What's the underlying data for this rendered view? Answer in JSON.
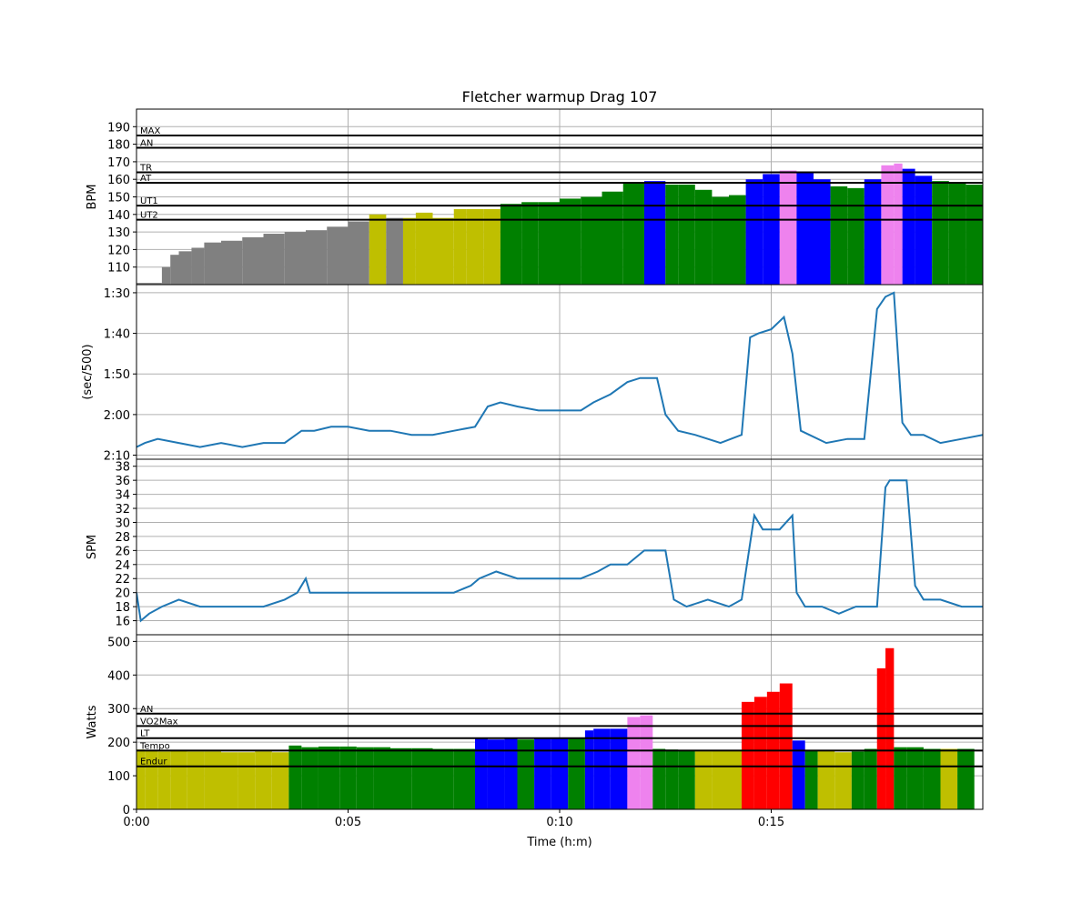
{
  "chart_data": {
    "type": "multi-panel",
    "title": "Fletcher warmup Drag 107",
    "xlabel": "Time (h:m)",
    "x_ticks": [
      "0:00",
      "0:05",
      "0:10",
      "0:15"
    ],
    "x_tick_values": [
      0,
      5,
      10,
      15
    ],
    "xlim": [
      0,
      20
    ],
    "zone_colors": {
      "rest": "#808080",
      "ut2": "#bfbf00",
      "ut1": "#008000",
      "at": "#0000ff",
      "tr": "#ee82ee",
      "an": "#ff0000"
    },
    "line_color": "#1f77b4",
    "panels": [
      {
        "type": "bar",
        "ylabel": "BPM",
        "ylim": [
          100,
          200
        ],
        "y_ticks": [
          "110",
          "120",
          "130",
          "140",
          "150",
          "160",
          "170",
          "180",
          "190"
        ],
        "y_tick_values": [
          110,
          120,
          130,
          140,
          150,
          160,
          170,
          180,
          190
        ],
        "thresholds": [
          {
            "label": "MAX",
            "value": 185
          },
          {
            "label": "AN",
            "value": 178
          },
          {
            "label": "TR",
            "value": 164
          },
          {
            "label": "AT",
            "value": 158
          },
          {
            "label": "UT1",
            "value": 145
          },
          {
            "label": "UT2",
            "value": 137
          }
        ],
        "series": {
          "x": [
            0.6,
            0.8,
            1.0,
            1.3,
            1.6,
            2.0,
            2.5,
            3.0,
            3.5,
            4.0,
            4.5,
            5.0,
            5.5,
            5.9,
            6.3,
            6.6,
            7.0,
            7.5,
            7.8,
            8.2,
            8.6,
            9.1,
            9.5,
            10.0,
            10.5,
            11.0,
            11.5,
            12.0,
            12.5,
            12.8,
            13.2,
            13.6,
            14.0,
            14.4,
            14.8,
            15.2,
            15.6,
            16.0,
            16.4,
            16.8,
            17.2,
            17.6,
            17.9,
            18.1,
            18.4,
            18.8,
            19.2,
            19.6,
            20.0
          ],
          "values": [
            101,
            110,
            117,
            119,
            121,
            124,
            125,
            127,
            129,
            130,
            131,
            133,
            136,
            140,
            138,
            138,
            141,
            138,
            143,
            143,
            143,
            146,
            147,
            147,
            149,
            150,
            153,
            158,
            159,
            157,
            157,
            154,
            150,
            151,
            160,
            163,
            165,
            164,
            160,
            156,
            155,
            160,
            168,
            169,
            166,
            162,
            159,
            158,
            157
          ],
          "zones": [
            "rest",
            "rest",
            "rest",
            "rest",
            "rest",
            "rest",
            "rest",
            "rest",
            "rest",
            "rest",
            "rest",
            "rest",
            "rest",
            "ut2",
            "rest",
            "ut2",
            "ut2",
            "ut2",
            "ut2",
            "ut2",
            "ut2",
            "ut1",
            "ut1",
            "ut1",
            "ut1",
            "ut1",
            "ut1",
            "ut1",
            "at",
            "ut1",
            "ut1",
            "ut1",
            "ut1",
            "ut1",
            "at",
            "at",
            "tr",
            "at",
            "at",
            "ut1",
            "ut1",
            "at",
            "tr",
            "tr",
            "at",
            "at",
            "ut1",
            "ut1",
            "ut1"
          ]
        }
      },
      {
        "type": "line",
        "ylabel": "(sec/500)",
        "ylim": [
          131,
          88
        ],
        "y_ticks": [
          "1:30",
          "1:40",
          "1:50",
          "2:00",
          "2:10"
        ],
        "y_tick_values": [
          90,
          100,
          110,
          120,
          130
        ],
        "series": {
          "x": [
            0.0,
            0.2,
            0.5,
            1.0,
            1.5,
            2.0,
            2.5,
            3.0,
            3.5,
            3.9,
            4.2,
            4.6,
            5.0,
            5.5,
            6.0,
            6.5,
            7.0,
            7.5,
            8.0,
            8.3,
            8.6,
            9.0,
            9.5,
            10.0,
            10.5,
            10.8,
            11.2,
            11.6,
            11.9,
            12.3,
            12.5,
            12.8,
            13.2,
            13.8,
            14.3,
            14.5,
            14.7,
            15.0,
            15.3,
            15.5,
            15.7,
            15.9,
            16.3,
            16.8,
            17.2,
            17.5,
            17.7,
            17.9,
            18.1,
            18.3,
            18.6,
            19.0,
            19.5,
            20.0
          ],
          "values": [
            128,
            127,
            126,
            127,
            128,
            127,
            128,
            127,
            127,
            124,
            124,
            123,
            123,
            124,
            124,
            125,
            125,
            124,
            123,
            118,
            117,
            118,
            119,
            119,
            119,
            117,
            115,
            112,
            111,
            111,
            120,
            124,
            125,
            127,
            125,
            101,
            100,
            99,
            96,
            105,
            124,
            125,
            127,
            126,
            126,
            94,
            91,
            90,
            122,
            125,
            125,
            127,
            126,
            125
          ]
        }
      },
      {
        "type": "line",
        "ylabel": "SPM",
        "ylim": [
          14,
          39
        ],
        "y_ticks": [
          "16",
          "18",
          "20",
          "22",
          "24",
          "26",
          "28",
          "30",
          "32",
          "34",
          "36",
          "38"
        ],
        "y_tick_values": [
          16,
          18,
          20,
          22,
          24,
          26,
          28,
          30,
          32,
          34,
          36,
          38
        ],
        "series": {
          "x": [
            0.0,
            0.1,
            0.3,
            0.6,
            1.0,
            1.5,
            2.0,
            2.5,
            3.0,
            3.5,
            3.8,
            4.0,
            4.1,
            4.5,
            5.0,
            6.0,
            7.0,
            7.5,
            7.9,
            8.1,
            8.5,
            9.0,
            9.5,
            10.0,
            10.5,
            10.9,
            11.2,
            11.6,
            12.0,
            12.5,
            12.7,
            13.0,
            13.5,
            14.0,
            14.3,
            14.6,
            14.8,
            15.2,
            15.5,
            15.6,
            15.8,
            16.2,
            16.6,
            17.0,
            17.5,
            17.7,
            17.8,
            18.2,
            18.4,
            18.6,
            19.0,
            19.5,
            20.0
          ],
          "values": [
            20,
            16,
            17,
            18,
            19,
            18,
            18,
            18,
            18,
            19,
            20,
            22,
            20,
            20,
            20,
            20,
            20,
            20,
            21,
            22,
            23,
            22,
            22,
            22,
            22,
            23,
            24,
            24,
            26,
            26,
            19,
            18,
            19,
            18,
            19,
            31,
            29,
            29,
            31,
            20,
            18,
            18,
            17,
            18,
            18,
            35,
            36,
            36,
            21,
            19,
            19,
            18,
            18
          ]
        }
      },
      {
        "type": "bar",
        "ylabel": "Watts",
        "ylim": [
          0,
          520
        ],
        "y_ticks": [
          "0",
          "100",
          "200",
          "300",
          "400",
          "500"
        ],
        "y_tick_values": [
          0,
          100,
          200,
          300,
          400,
          500
        ],
        "thresholds": [
          {
            "label": "AN",
            "value": 285
          },
          {
            "label": "VO2Max",
            "value": 248
          },
          {
            "label": "LT",
            "value": 212
          },
          {
            "label": "Tempo",
            "value": 175
          },
          {
            "label": "Endur",
            "value": 128
          }
        ],
        "series": {
          "x": [
            0.2,
            0.5,
            0.8,
            1.2,
            1.6,
            2.0,
            2.4,
            2.8,
            3.2,
            3.6,
            3.9,
            4.3,
            4.8,
            5.2,
            5.6,
            6.0,
            6.5,
            7.0,
            7.5,
            8.0,
            8.3,
            8.7,
            9.0,
            9.4,
            9.8,
            10.2,
            10.6,
            10.8,
            11.2,
            11.6,
            11.9,
            12.2,
            12.5,
            12.8,
            13.2,
            13.6,
            14.0,
            14.3,
            14.6,
            14.9,
            15.2,
            15.5,
            15.8,
            16.1,
            16.5,
            16.9,
            17.2,
            17.5,
            17.7,
            17.9,
            18.2,
            18.6,
            19.0,
            19.4,
            19.8
          ],
          "values": [
            178,
            175,
            172,
            174,
            172,
            172,
            170,
            170,
            172,
            170,
            190,
            185,
            187,
            187,
            185,
            185,
            182,
            182,
            180,
            180,
            210,
            208,
            210,
            208,
            210,
            210,
            210,
            235,
            240,
            240,
            275,
            280,
            180,
            178,
            175,
            173,
            175,
            175,
            320,
            335,
            350,
            375,
            205,
            175,
            175,
            170,
            172,
            180,
            420,
            480,
            185,
            185,
            180,
            180,
            180
          ],
          "zones": [
            "ut2",
            "ut2",
            "ut2",
            "ut2",
            "ut2",
            "ut2",
            "ut2",
            "ut2",
            "ut2",
            "ut2",
            "ut1",
            "ut1",
            "ut1",
            "ut1",
            "ut1",
            "ut1",
            "ut1",
            "ut1",
            "ut1",
            "ut1",
            "at",
            "at",
            "at",
            "ut1",
            "at",
            "at",
            "ut1",
            "at",
            "at",
            "at",
            "tr",
            "tr",
            "ut1",
            "ut1",
            "ut1",
            "ut2",
            "ut2",
            "ut2",
            "an",
            "an",
            "an",
            "an",
            "at",
            "ut1",
            "ut2",
            "ut2",
            "ut1",
            "ut1",
            "an",
            "an",
            "ut1",
            "ut1",
            "ut1",
            "ut2",
            "ut1"
          ]
        }
      }
    ]
  }
}
